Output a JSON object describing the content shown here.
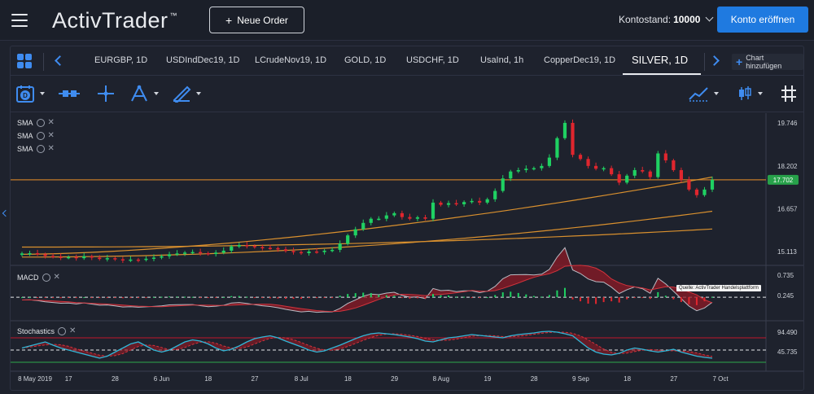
{
  "header": {
    "logo_text": "ActivTrader",
    "logo_tm": "™",
    "new_order_label": "Neue Order",
    "balance_label": "Kontostand:",
    "balance_value": "10000",
    "open_account_label": "Konto eröffnen"
  },
  "tabs": [
    {
      "label": "EURGBP, 1D",
      "active": false
    },
    {
      "label": "USDIndDec19, 1D",
      "active": false
    },
    {
      "label": "LCrudeNov19, 1D",
      "active": false
    },
    {
      "label": "GOLD, 1D",
      "active": false
    },
    {
      "label": "USDCHF, 1D",
      "active": false
    },
    {
      "label": "UsaInd, 1h",
      "active": false
    },
    {
      "label": "CopperDec19, 1D",
      "active": false
    },
    {
      "label": "SILVER, 1D",
      "active": true
    }
  ],
  "add_chart_label": "Chart hinzufügen",
  "toolbar_icons": [
    "calendar-d-icon",
    "line-style-icon",
    "crosshair-icon",
    "fibonacci-icon",
    "drawing-pencil-icon",
    "trend-chart-icon",
    "candlestick-type-icon",
    "grid-hash-icon"
  ],
  "indicators": {
    "sma": [
      "SMA",
      "SMA",
      "SMA"
    ],
    "macd": "MACD",
    "stochastics": "Stochastics"
  },
  "watermark": "Quelle: ActivTrader Handelsplattform",
  "chart_data": {
    "type": "candlestick",
    "symbol": "SILVER, 1D",
    "current_price": "17.702",
    "price_axis_ticks": [
      "19.746",
      "18.202",
      "16.657",
      "15.113"
    ],
    "price_range": [
      14.65,
      20.1
    ],
    "x_tick_labels": [
      "8 May 2019",
      "17",
      "28",
      "6 Jun",
      "18",
      "27",
      "8 Jul",
      "18",
      "29",
      "8 Aug",
      "19",
      "28",
      "9 Sep",
      "18",
      "27",
      "7 Oct"
    ],
    "colors": {
      "up": "#1fd162",
      "down": "#e0262e",
      "sma": "#d9902e",
      "price_line": "#c47b2a",
      "current_badge": "#27a14a",
      "stoch_band": "#c0172c",
      "macd_area": "#8e1a25",
      "stoch_k": "#2fb8d8"
    },
    "closes": [
      15.05,
      15.06,
      15.02,
      14.96,
      14.93,
      14.9,
      14.92,
      14.88,
      14.95,
      14.9,
      14.85,
      14.88,
      14.84,
      14.8,
      14.83,
      14.82,
      14.86,
      14.9,
      14.95,
      15.02,
      15.05,
      15.08,
      15.1,
      15.06,
      15.03,
      15.08,
      15.15,
      15.3,
      15.35,
      15.32,
      15.28,
      15.25,
      15.24,
      15.2,
      15.14,
      15.1,
      15.06,
      15.12,
      15.1,
      15.15,
      15.18,
      15.4,
      15.7,
      15.92,
      16.15,
      16.3,
      16.3,
      16.42,
      16.5,
      16.36,
      16.3,
      16.35,
      16.3,
      16.88,
      16.8,
      16.86,
      16.82,
      16.9,
      16.94,
      16.88,
      17.0,
      17.3,
      17.75,
      18.0,
      18.05,
      18.1,
      18.12,
      18.2,
      18.5,
      19.2,
      19.75,
      18.6,
      18.45,
      18.2,
      18.1,
      18.12,
      17.9,
      17.6,
      17.85,
      18.05,
      18.0,
      17.8,
      18.65,
      18.4,
      18.05,
      17.7,
      17.35,
      17.15,
      17.35,
      17.7
    ],
    "sma_fast_ends": [
      15.02,
      17.8
    ],
    "sma_mid_ends": [
      14.92,
      16.57
    ],
    "sma_slow_ends": [
      15.28,
      15.93
    ],
    "macd_axis_ticks": [
      "0.735",
      "0.245"
    ],
    "macd_range": [
      -0.35,
      0.95
    ],
    "stochastics_axis_ticks": [
      "94.490",
      "45.735"
    ],
    "stochastics_range": [
      0,
      120
    ],
    "stochastics_levels": [
      80,
      20
    ],
    "stochastics_k": [
      55,
      60,
      65,
      70,
      62,
      55,
      50,
      45,
      40,
      35,
      30,
      35,
      45,
      55,
      65,
      70,
      60,
      50,
      45,
      50,
      60,
      70,
      75,
      72,
      65,
      55,
      48,
      52,
      60,
      70,
      78,
      82,
      85,
      80,
      72,
      65,
      58,
      50,
      45,
      48,
      55,
      62,
      70,
      78,
      85,
      90,
      92,
      90,
      88,
      85,
      82,
      78,
      72,
      70,
      75,
      80,
      82,
      85,
      88,
      86,
      84,
      82,
      80,
      85,
      88,
      90,
      92,
      95,
      96,
      94,
      90,
      85,
      70,
      55,
      45,
      40,
      38,
      42,
      50,
      55,
      52,
      48,
      45,
      48,
      52,
      45,
      40,
      35,
      32,
      30
    ]
  }
}
